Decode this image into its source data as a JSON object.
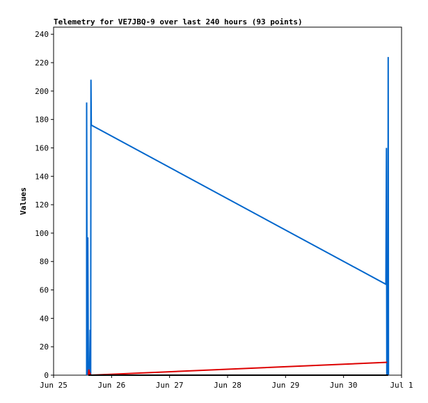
{
  "chart_data": {
    "type": "line",
    "title": "Telemetry for VE7JBQ-9 over last 240 hours (93 points)",
    "xlabel": "",
    "ylabel": "Values",
    "x_ticks": [
      "Jun 25",
      "Jun 26",
      "Jun 27",
      "Jun 28",
      "Jun 29",
      "Jun 30",
      "Jul 1"
    ],
    "xlim_days": [
      25.0,
      31.0
    ],
    "ylim": [
      0,
      245
    ],
    "y_ticks": [
      0,
      20,
      40,
      60,
      80,
      100,
      120,
      140,
      160,
      180,
      200,
      220,
      240
    ],
    "grid": false,
    "series": [
      {
        "color": "#0066cc",
        "points": [
          [
            25.57,
            0
          ],
          [
            25.57,
            192
          ],
          [
            25.58,
            0
          ],
          [
            25.59,
            97
          ],
          [
            25.6,
            0
          ],
          [
            25.61,
            3
          ],
          [
            25.62,
            0
          ],
          [
            25.63,
            32
          ],
          [
            25.64,
            0
          ],
          [
            25.645,
            208
          ],
          [
            25.65,
            176
          ],
          [
            30.73,
            64
          ],
          [
            30.74,
            160
          ],
          [
            30.745,
            0
          ],
          [
            30.75,
            80
          ],
          [
            30.755,
            0
          ],
          [
            30.76,
            80
          ],
          [
            30.765,
            0
          ],
          [
            30.77,
            224
          ],
          [
            30.775,
            0
          ]
        ]
      },
      {
        "color": "#dd0000",
        "points": [
          [
            25.6,
            0
          ],
          [
            25.61,
            4
          ],
          [
            25.62,
            0
          ],
          [
            25.63,
            1
          ],
          [
            25.64,
            0
          ],
          [
            25.65,
            0
          ],
          [
            30.73,
            9
          ],
          [
            30.75,
            9
          ]
        ]
      },
      {
        "color": "#000000",
        "points": [
          [
            25.6,
            0
          ],
          [
            30.77,
            0
          ]
        ]
      }
    ]
  }
}
